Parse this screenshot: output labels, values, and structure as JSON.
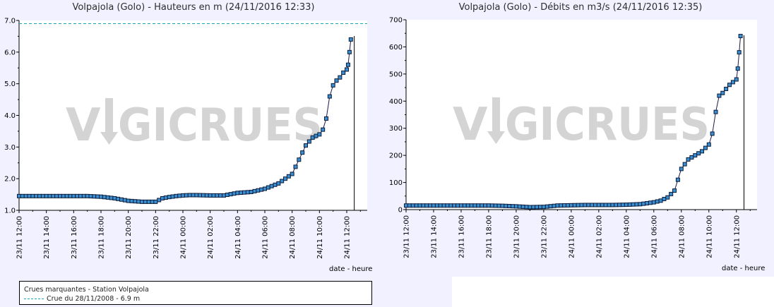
{
  "colors": {
    "background": "#f1f1ff",
    "plot_background": "#ffffff",
    "line": "#1a1a4a",
    "marker_fill": "#3a8fd0",
    "marker_stroke": "#0a1a3a",
    "reference_line": "#1aa4b8",
    "watermark": "#d4d4d4"
  },
  "watermark": {
    "text_left": "V",
    "text_right": "GICRUES"
  },
  "legend": {
    "title": "Crues marquantes - Station Volpajola",
    "entry": "Crue du 28/11/2008 - 6.9 m"
  },
  "chart_data": [
    {
      "type": "line",
      "title": "Volpajola (Golo) - Hauteurs en m (24/11/2016 12:33)",
      "xlabel": "date - heure",
      "ylabel": "",
      "x_unit": "hours since 23/11 12:00",
      "xlim": [
        0,
        25.5
      ],
      "ylim": [
        1.0,
        7.0
      ],
      "yticks": [
        "1.0",
        "2.0",
        "3.0",
        "4.0",
        "5.0",
        "6.0",
        "7.0"
      ],
      "xticks": [
        "23/11 12:00",
        "23/11 14:00",
        "23/11 16:00",
        "23/11 18:00",
        "23/11 20:00",
        "23/11 22:00",
        "24/11 00:00",
        "24/11 02:00",
        "24/11 04:00",
        "24/11 06:00",
        "24/11 08:00",
        "24/11 10:00",
        "24/11 12:00"
      ],
      "reference_lines": [
        {
          "label": "Crue du 28/11/2008 - 6.9 m",
          "y": 6.9
        }
      ],
      "current_time_marker": 24.55,
      "series": [
        {
          "x": [
            0,
            1,
            2,
            3,
            4,
            5,
            6,
            7,
            8,
            9,
            10,
            10.5,
            11,
            11.5,
            12,
            12.5,
            13,
            14,
            15,
            16,
            17,
            18,
            19,
            20,
            20.5,
            21,
            21.5,
            22,
            22.25,
            22.5,
            22.75,
            23,
            23.25,
            23.5,
            23.75,
            24,
            24.1,
            24.2,
            24.3
          ],
          "y": [
            1.45,
            1.45,
            1.45,
            1.45,
            1.45,
            1.45,
            1.43,
            1.38,
            1.3,
            1.27,
            1.27,
            1.38,
            1.42,
            1.45,
            1.47,
            1.48,
            1.48,
            1.47,
            1.47,
            1.55,
            1.58,
            1.68,
            1.85,
            2.15,
            2.6,
            3.05,
            3.3,
            3.4,
            3.55,
            3.9,
            4.6,
            4.95,
            5.1,
            5.2,
            5.35,
            5.45,
            5.6,
            6.0,
            6.4
          ]
        }
      ]
    },
    {
      "type": "line",
      "title": "Volpajola (Golo) - Débits en m3/s (24/11/2016 12:35)",
      "xlabel": "date - heure",
      "ylabel": "",
      "x_unit": "hours since 23/11 12:00",
      "xlim": [
        0,
        25.5
      ],
      "ylim": [
        0,
        700
      ],
      "yticks": [
        "0",
        "100",
        "200",
        "300",
        "400",
        "500",
        "600",
        "700"
      ],
      "xticks": [
        "23/11 12:00",
        "23/11 14:00",
        "23/11 16:00",
        "23/11 18:00",
        "23/11 20:00",
        "23/11 22:00",
        "24/11 00:00",
        "24/11 02:00",
        "24/11 04:00",
        "24/11 06:00",
        "24/11 08:00",
        "24/11 10:00",
        "24/11 12:00"
      ],
      "current_time_marker": 24.55,
      "series": [
        {
          "x": [
            0,
            2,
            4,
            6,
            7,
            8,
            9,
            10,
            11,
            12,
            13,
            14,
            15,
            16,
            17,
            18,
            18.5,
            19,
            19.5,
            20,
            20.5,
            21,
            21.5,
            22,
            22.25,
            22.5,
            22.75,
            23,
            23.25,
            23.5,
            23.75,
            24,
            24.1,
            24.2,
            24.3
          ],
          "y": [
            15,
            15,
            15,
            15,
            14,
            12,
            9,
            10,
            15,
            16,
            17,
            17,
            17,
            18,
            20,
            27,
            33,
            45,
            70,
            150,
            185,
            200,
            215,
            240,
            280,
            360,
            420,
            430,
            445,
            460,
            470,
            480,
            520,
            580,
            640
          ]
        }
      ]
    }
  ]
}
